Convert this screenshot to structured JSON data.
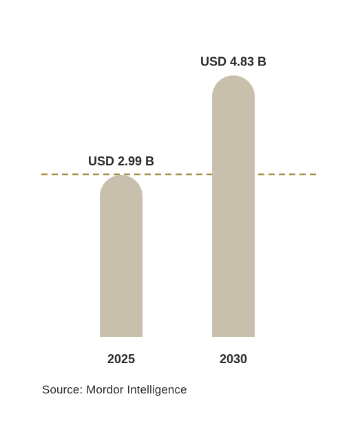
{
  "chart_data": {
    "type": "bar",
    "categories": [
      "2025",
      "2030"
    ],
    "values": [
      2.99,
      4.83
    ],
    "data_labels": [
      "USD 2.99 B",
      "USD 4.83 B"
    ],
    "title": "",
    "xlabel": "",
    "ylabel": "",
    "grid": false,
    "reference_line": {
      "value": 2.99,
      "style": "dashed"
    },
    "colors": {
      "bar": "#c8bfad",
      "reference_line": "#a38f45",
      "text": "#2a2a2a"
    }
  },
  "source": "Source: Mordor Intelligence"
}
